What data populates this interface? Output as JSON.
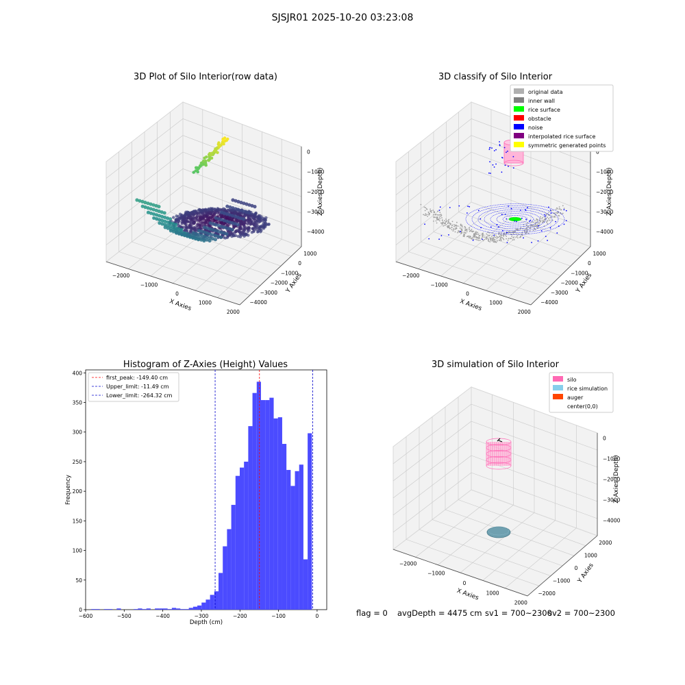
{
  "suptitle": "SJSJR01 2025-10-20 03:23:08",
  "status": {
    "flag": "flag = 0",
    "avg_depth": "avgDepth = 4475 cm",
    "sv1": "sv1 = 700~2300",
    "sv2": "sv2 = 700~2300"
  },
  "colors": {
    "histogram_bar": "#4b4bff",
    "peak_line": "#ff0000",
    "limit_line": "#0000cc",
    "pane": "#f2f2f2",
    "silo": "#ff69b4",
    "rice_sim": "#87ceeb",
    "auger": "#ff4500"
  },
  "chart_data": [
    {
      "type": "scatter",
      "subtype": "3d",
      "title": "3D Plot of Silo Interior(row data)",
      "xlabel": "X Axies",
      "ylabel": "Y Axies",
      "zlabel": "Z Axies (Depth)",
      "x_ticks": [
        "−2000",
        "−1000",
        "0",
        "1000",
        "2000"
      ],
      "y_ticks": [
        "1000",
        "0",
        "−1000",
        "−2000",
        "−3000",
        "−4000"
      ],
      "z_ticks": [
        "0",
        "−1000",
        "−2000",
        "−3000",
        "−4000"
      ],
      "colormap": "viridis"
    },
    {
      "type": "scatter",
      "subtype": "3d",
      "title": "3D classify of Silo Interior",
      "xlabel": "X Axies",
      "ylabel": "Y Axies",
      "zlabel": "Z Axies (Depth)",
      "x_ticks": [
        "−2000",
        "−1000",
        "0",
        "1000",
        "2000"
      ],
      "y_ticks": [
        "1000",
        "0",
        "−1000",
        "−2000",
        "−3000",
        "−4000"
      ],
      "z_ticks": [
        "0",
        "−1000",
        "−2000",
        "−3000",
        "−4000"
      ],
      "legend": [
        {
          "label": "original data",
          "color": "#b0b0b0"
        },
        {
          "label": "inner wall",
          "color": "#808080"
        },
        {
          "label": "rice surface",
          "color": "#00ff00"
        },
        {
          "label": "obstacle",
          "color": "#ff0000"
        },
        {
          "label": "noise",
          "color": "#0000ff"
        },
        {
          "label": "interpolated rice surface",
          "color": "#800080"
        },
        {
          "label": "symmetric generated points",
          "color": "#ffff00"
        }
      ],
      "legend_position": "top-right"
    },
    {
      "type": "bar",
      "subtype": "histogram",
      "title": "Histogram of Z-Axies (Height) Values",
      "xlabel": "Depth (cm)",
      "ylabel": "Frequency",
      "xlim": [
        -600,
        25
      ],
      "ylim": [
        0,
        405
      ],
      "x_ticks": [
        -600,
        -500,
        -400,
        -300,
        -200,
        -100,
        0
      ],
      "y_ticks": [
        0,
        50,
        100,
        150,
        200,
        250,
        300,
        350,
        400
      ],
      "x_tick_labels": [
        "−600",
        "−500",
        "−400",
        "−300",
        "−200",
        "−100",
        "0"
      ],
      "bin_width": 11,
      "bins": [
        {
          "x": -580,
          "v": 1
        },
        {
          "x": -569,
          "v": 1
        },
        {
          "x": -558,
          "v": 0
        },
        {
          "x": -547,
          "v": 1
        },
        {
          "x": -536,
          "v": 1
        },
        {
          "x": -525,
          "v": 0
        },
        {
          "x": -514,
          "v": 2
        },
        {
          "x": -503,
          "v": 0
        },
        {
          "x": -492,
          "v": 0
        },
        {
          "x": -481,
          "v": 0
        },
        {
          "x": -470,
          "v": 1
        },
        {
          "x": -459,
          "v": 2
        },
        {
          "x": -448,
          "v": 1
        },
        {
          "x": -437,
          "v": 2
        },
        {
          "x": -426,
          "v": 0
        },
        {
          "x": -415,
          "v": 2
        },
        {
          "x": -404,
          "v": 2
        },
        {
          "x": -393,
          "v": 2
        },
        {
          "x": -382,
          "v": 1
        },
        {
          "x": -371,
          "v": 3
        },
        {
          "x": -360,
          "v": 2
        },
        {
          "x": -349,
          "v": 1
        },
        {
          "x": -338,
          "v": 1
        },
        {
          "x": -327,
          "v": 3
        },
        {
          "x": -316,
          "v": 5
        },
        {
          "x": -305,
          "v": 7
        },
        {
          "x": -294,
          "v": 12
        },
        {
          "x": -283,
          "v": 17
        },
        {
          "x": -272,
          "v": 25
        },
        {
          "x": -261,
          "v": 31
        },
        {
          "x": -250,
          "v": 62
        },
        {
          "x": -239,
          "v": 107
        },
        {
          "x": -228,
          "v": 136
        },
        {
          "x": -217,
          "v": 177
        },
        {
          "x": -206,
          "v": 226
        },
        {
          "x": -195,
          "v": 240
        },
        {
          "x": -184,
          "v": 250
        },
        {
          "x": -173,
          "v": 310
        },
        {
          "x": -162,
          "v": 366
        },
        {
          "x": -151,
          "v": 385
        },
        {
          "x": -140,
          "v": 354
        },
        {
          "x": -129,
          "v": 354
        },
        {
          "x": -118,
          "v": 358
        },
        {
          "x": -107,
          "v": 323
        },
        {
          "x": -96,
          "v": 325
        },
        {
          "x": -85,
          "v": 280
        },
        {
          "x": -74,
          "v": 236
        },
        {
          "x": -63,
          "v": 209
        },
        {
          "x": -52,
          "v": 234
        },
        {
          "x": -41,
          "v": 245
        },
        {
          "x": -30,
          "v": 85
        },
        {
          "x": -19,
          "v": 298
        }
      ],
      "vlines": [
        {
          "label": "first_peak: -149.40 cm",
          "x": -149.4,
          "color": "#ff0000"
        },
        {
          "label": "Upper_limit: -11.49 cm",
          "x": -11.49,
          "color": "#0000cc"
        },
        {
          "label": "Lower_limit: -264.32 cm",
          "x": -264.32,
          "color": "#0000cc"
        }
      ],
      "legend_position": "top-left"
    },
    {
      "type": "scatter",
      "subtype": "3d",
      "title": "3D simulation of Silo Interior",
      "xlabel": "X Axies",
      "ylabel": "Y Axies",
      "zlabel": "Z Axies (Depth)",
      "x_ticks": [
        "−2000",
        "−1000",
        "0",
        "1000",
        "2000"
      ],
      "y_ticks": [
        "2000",
        "1000",
        "0",
        "−1000",
        "−2000"
      ],
      "z_ticks": [
        "0",
        "−1000",
        "−2000",
        "−3000",
        "−4000"
      ],
      "legend": [
        {
          "label": "silo",
          "color": "#ff69b4"
        },
        {
          "label": "rice simulation",
          "color": "#87ceeb"
        },
        {
          "label": "auger",
          "color": "#ff4500"
        },
        {
          "label": "center(0,0)",
          "color": ""
        }
      ],
      "legend_position": "top-right"
    }
  ]
}
